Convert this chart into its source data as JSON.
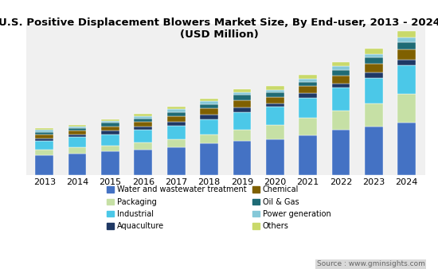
{
  "title": "U.S. Positive Displacement Blowers Market Size, By End-user, 2013 - 2024\n(USD Million)",
  "years": [
    2013,
    2014,
    2015,
    2016,
    2017,
    2018,
    2019,
    2020,
    2021,
    2022,
    2023,
    2024
  ],
  "segments": [
    {
      "label": "Water and wastewater treatment",
      "color": "#4472c4",
      "values": [
        22,
        24,
        26,
        28,
        31,
        35,
        38,
        40,
        44,
        50,
        54,
        58
      ]
    },
    {
      "label": "Packaging",
      "color": "#c6e0a5",
      "values": [
        6,
        7,
        7,
        8,
        9,
        10,
        12,
        16,
        20,
        22,
        26,
        32
      ]
    },
    {
      "label": "Industrial",
      "color": "#4bc8e8",
      "values": [
        10,
        11,
        12,
        14,
        15,
        17,
        20,
        20,
        22,
        25,
        28,
        32
      ]
    },
    {
      "label": "Aquaculture",
      "color": "#1f3864",
      "values": [
        3,
        3,
        4,
        4,
        4,
        5,
        5,
        4,
        5,
        5,
        6,
        6
      ]
    },
    {
      "label": "Chemical",
      "color": "#7f6000",
      "values": [
        4,
        4,
        5,
        5,
        6,
        7,
        8,
        7,
        8,
        9,
        10,
        12
      ]
    },
    {
      "label": "Oil & Gas",
      "color": "#1f6b75",
      "values": [
        3,
        3,
        4,
        4,
        5,
        5,
        6,
        5,
        5,
        6,
        7,
        8
      ]
    },
    {
      "label": "Power generation",
      "color": "#85c8d8",
      "values": [
        2,
        2,
        2,
        2,
        3,
        3,
        3,
        3,
        3,
        4,
        4,
        5
      ]
    },
    {
      "label": "Others",
      "color": "#c9d96a",
      "values": [
        2,
        2,
        2,
        3,
        3,
        3,
        4,
        4,
        5,
        5,
        6,
        7
      ]
    }
  ],
  "background_color": "#ffffff",
  "plot_bg_color": "#f0f0f0",
  "source_text": "Source : www.gminsights.com",
  "source_bg": "#d9d9d9",
  "bar_width": 0.55,
  "title_fontsize": 9.5,
  "legend_fontsize": 7.0,
  "tick_fontsize": 8.0
}
